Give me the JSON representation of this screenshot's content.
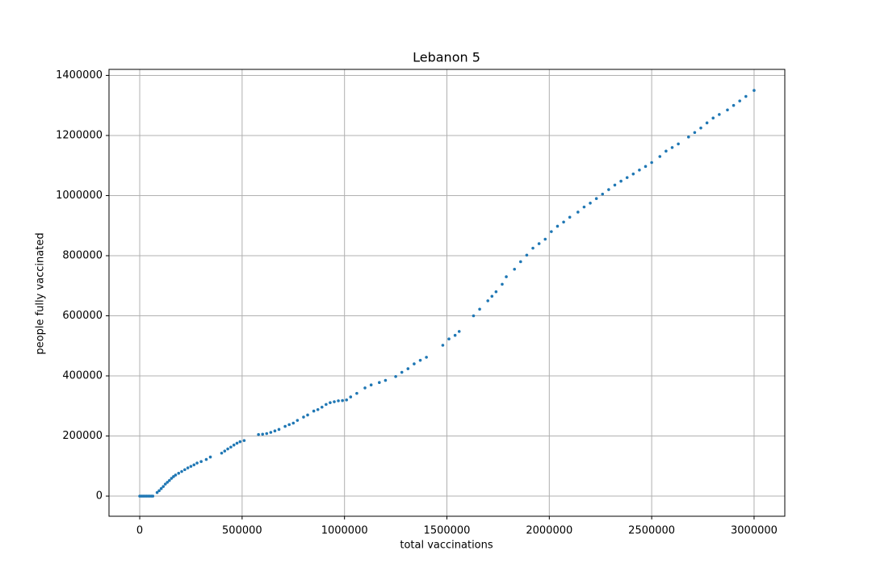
{
  "chart_data": {
    "type": "scatter",
    "title": "Lebanon 5",
    "x_label": "total vaccinations",
    "y_label": "people fully vaccinated",
    "series": [
      {
        "color": "#1f77b4",
        "x": [
          0,
          8000,
          16000,
          24000,
          32000,
          40000,
          48000,
          56000,
          64000,
          85000,
          95000,
          105000,
          115000,
          125000,
          135000,
          145000,
          155000,
          165000,
          175000,
          190000,
          205000,
          220000,
          235000,
          250000,
          265000,
          280000,
          300000,
          325000,
          345000,
          400000,
          415000,
          430000,
          445000,
          460000,
          475000,
          490000,
          510000,
          580000,
          600000,
          620000,
          640000,
          660000,
          680000,
          710000,
          730000,
          750000,
          770000,
          800000,
          820000,
          850000,
          870000,
          890000,
          910000,
          930000,
          950000,
          970000,
          990000,
          1010000,
          1030000,
          1060000,
          1100000,
          1130000,
          1170000,
          1200000,
          1250000,
          1280000,
          1310000,
          1340000,
          1370000,
          1400000,
          1480000,
          1510000,
          1540000,
          1560000,
          1630000,
          1660000,
          1700000,
          1720000,
          1740000,
          1770000,
          1790000,
          1830000,
          1860000,
          1890000,
          1920000,
          1950000,
          1980000,
          2010000,
          2040000,
          2070000,
          2100000,
          2140000,
          2170000,
          2200000,
          2230000,
          2260000,
          2290000,
          2320000,
          2350000,
          2380000,
          2410000,
          2440000,
          2470000,
          2500000,
          2540000,
          2570000,
          2600000,
          2630000,
          2680000,
          2710000,
          2740000,
          2770000,
          2800000,
          2830000,
          2870000,
          2900000,
          2930000,
          2960000,
          3000000
        ],
        "values": [
          0,
          0,
          0,
          0,
          0,
          0,
          0,
          0,
          0,
          12000,
          18000,
          25000,
          32000,
          40000,
          46000,
          52000,
          59000,
          65000,
          70000,
          76000,
          82000,
          88000,
          94000,
          99000,
          104000,
          110000,
          115000,
          122000,
          130000,
          143000,
          150000,
          157000,
          163000,
          170000,
          176000,
          181000,
          185000,
          205000,
          206000,
          208000,
          212000,
          217000,
          222000,
          232000,
          238000,
          243000,
          252000,
          263000,
          270000,
          283000,
          288000,
          296000,
          305000,
          311000,
          314000,
          317000,
          318000,
          320000,
          330000,
          342000,
          360000,
          370000,
          378000,
          385000,
          398000,
          412000,
          424000,
          440000,
          452000,
          462000,
          502000,
          523000,
          535000,
          548000,
          600000,
          622000,
          650000,
          665000,
          680000,
          705000,
          730000,
          755000,
          780000,
          802000,
          825000,
          840000,
          855000,
          880000,
          898000,
          912000,
          928000,
          945000,
          962000,
          975000,
          990000,
          1005000,
          1020000,
          1035000,
          1048000,
          1060000,
          1072000,
          1085000,
          1097000,
          1110000,
          1130000,
          1148000,
          1160000,
          1172000,
          1195000,
          1210000,
          1225000,
          1242000,
          1258000,
          1270000,
          1285000,
          1300000,
          1315000,
          1330000,
          1350000
        ]
      }
    ],
    "xlim": [
      -150000,
      3150000
    ],
    "ylim": [
      -67000,
      1420000
    ],
    "xticks": [
      0,
      500000,
      1000000,
      1500000,
      2000000,
      2500000,
      3000000
    ],
    "yticks": [
      0,
      200000,
      400000,
      600000,
      800000,
      1000000,
      1200000,
      1400000
    ],
    "grid": true
  }
}
